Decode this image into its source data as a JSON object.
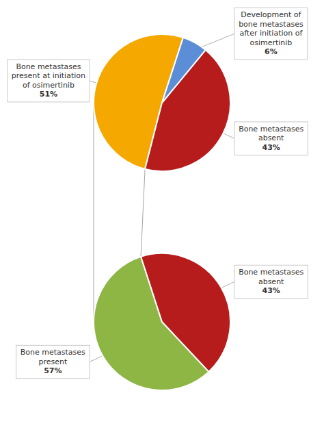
{
  "chart_data": [
    {
      "type": "pie",
      "categories": [
        "Bone metastases\npresent at initiation\nof osimertinib",
        "Bone metastases\nabsent",
        "Development of\nbone metastases\nafter initiation of\nosimertinib"
      ],
      "values": [
        51,
        43,
        6
      ],
      "value_labels": [
        "51%",
        "43%",
        "6%"
      ],
      "colors": [
        "#F5A800",
        "#B71C1C",
        "#5B8ED6"
      ],
      "data_labels": true
    },
    {
      "type": "pie",
      "categories": [
        "Bone metastases\npresent",
        "Bone metastases\nabsent"
      ],
      "values": [
        57,
        43
      ],
      "value_labels": [
        "57%",
        "43%"
      ],
      "colors": [
        "#8DB645",
        "#B71C1C"
      ],
      "data_labels": true
    }
  ]
}
